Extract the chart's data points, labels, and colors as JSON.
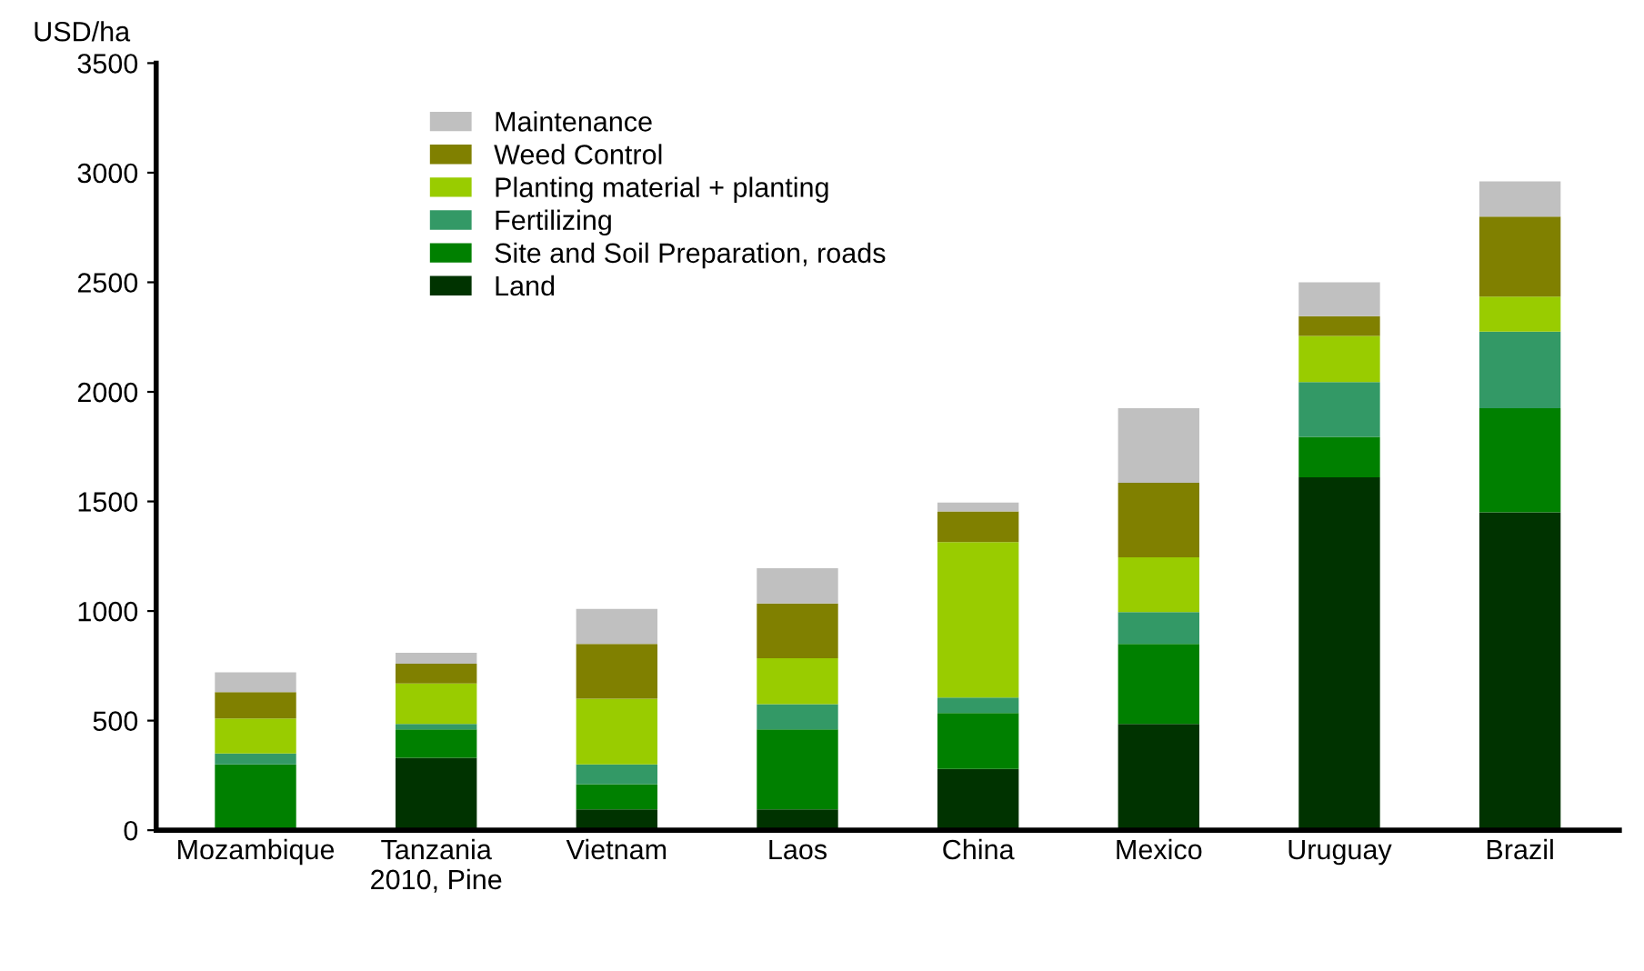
{
  "chart_data": {
    "type": "bar",
    "stacked": true,
    "ylabel": "USD/ha",
    "categories": [
      "Mozambique",
      "Tanzania\n2010, Pine",
      "Vietnam",
      "Laos",
      "China",
      "Mexico",
      "Uruguay",
      "Brazil"
    ],
    "series": [
      {
        "name": "Land",
        "color": "#003300",
        "values": [
          0,
          330,
          95,
          95,
          280,
          485,
          1610,
          1450
        ]
      },
      {
        "name": "Site and Soil Preparation, roads",
        "color": "#008000",
        "values": [
          300,
          130,
          115,
          365,
          255,
          365,
          185,
          475
        ]
      },
      {
        "name": "Fertilizing",
        "color": "#339966",
        "values": [
          50,
          25,
          90,
          115,
          70,
          145,
          250,
          350
        ]
      },
      {
        "name": "Planting material + planting",
        "color": "#99cc00",
        "values": [
          160,
          185,
          300,
          210,
          710,
          250,
          210,
          160
        ]
      },
      {
        "name": "Weed Control",
        "color": "#808000",
        "values": [
          120,
          90,
          250,
          250,
          140,
          340,
          90,
          365
        ]
      },
      {
        "name": "Maintenance",
        "color": "#c0c0c0",
        "values": [
          90,
          50,
          160,
          160,
          40,
          340,
          155,
          160
        ]
      }
    ],
    "ylim": [
      0,
      3500
    ],
    "yticks": [
      0,
      500,
      1000,
      1500,
      2000,
      2500,
      3000,
      3500
    ],
    "grid": false,
    "legend": "top left"
  }
}
